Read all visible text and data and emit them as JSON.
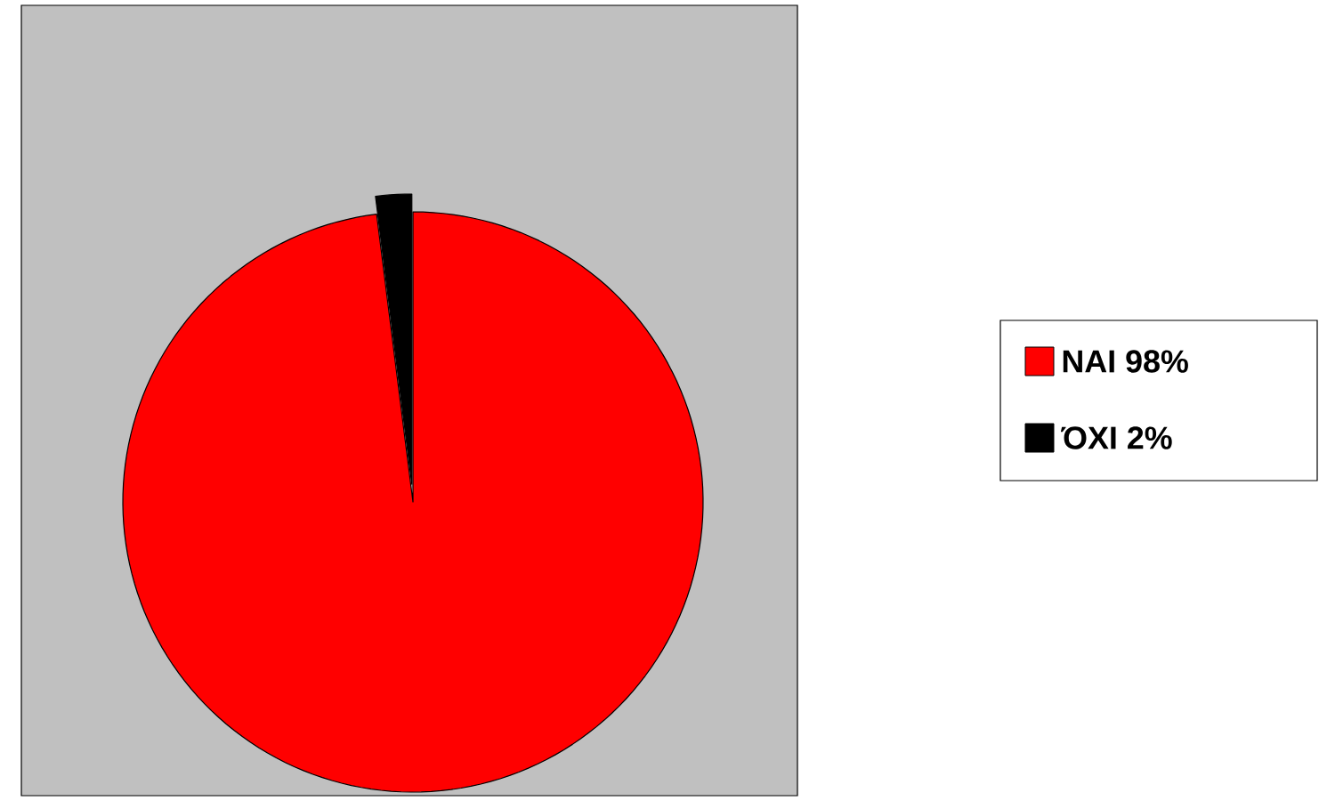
{
  "chart_data": {
    "type": "pie",
    "categories": [
      "ΝΑΙ  98%",
      "ΌΧΙ  2%"
    ],
    "values": [
      98,
      2
    ],
    "colors": [
      "#ff0000",
      "#000000"
    ],
    "legend": "right"
  }
}
